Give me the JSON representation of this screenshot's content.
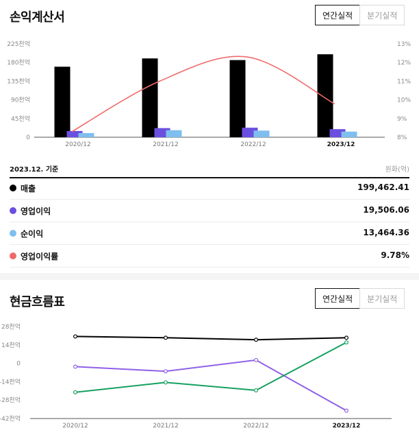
{
  "income": {
    "title": "손익계산서",
    "tabs": [
      {
        "label": "연간실적",
        "active": true
      },
      {
        "label": "분기실적",
        "active": false
      }
    ],
    "basis": "2023.12. 기준",
    "unit": "원화(억)",
    "legend": [
      {
        "label": "매출",
        "value": "199,462.41",
        "color": "#000000"
      },
      {
        "label": "영업이익",
        "value": "19,506.06",
        "color": "#6b4fe0"
      },
      {
        "label": "순이익",
        "value": "13,464.36",
        "color": "#7fbfef"
      },
      {
        "label": "영업이익률",
        "value": "9.78%",
        "color": "#f06a6a"
      }
    ]
  },
  "cashflow": {
    "title": "현금흐름표",
    "tabs": [
      {
        "label": "연간실적",
        "active": true
      },
      {
        "label": "분기실적",
        "active": false
      }
    ]
  },
  "chart_data": [
    {
      "type": "bar",
      "categories": [
        "2020/12",
        "2021/12",
        "2022/12",
        "2023/12"
      ],
      "highlight_category": "2023/12",
      "series": [
        {
          "name": "매출",
          "values": [
            170000,
            190000,
            186000,
            200000
          ],
          "color": "#000000"
        },
        {
          "name": "영업이익",
          "values": [
            15000,
            22000,
            23000,
            19500
          ],
          "color": "#6b4fe0"
        },
        {
          "name": "순이익",
          "values": [
            10000,
            17000,
            16000,
            13500
          ],
          "color": "#7fbfef"
        }
      ],
      "line_series": {
        "name": "영업이익률",
        "values": [
          8.3,
          11.0,
          12.3,
          9.78
        ],
        "color": "#f06a6a",
        "axis": "right"
      },
      "ylim": [
        0,
        225000
      ],
      "yticks": [
        0,
        45000,
        90000,
        135000,
        180000,
        225000
      ],
      "ytick_labels": [
        "0",
        "45천억",
        "90천억",
        "135천억",
        "180천억",
        "225천억"
      ],
      "y2lim": [
        8,
        13
      ],
      "y2ticks": [
        8,
        9,
        10,
        11,
        12,
        13
      ],
      "y2tick_labels": [
        "8%",
        "9%",
        "10%",
        "11%",
        "12%",
        "13%"
      ],
      "grid": false
    },
    {
      "type": "line",
      "categories": [
        "2020/12",
        "2021/12",
        "2022/12",
        "2023/12"
      ],
      "highlight_category": "2023/12",
      "series": [
        {
          "values": [
            20500,
            19500,
            18000,
            19500
          ],
          "color": "#000000"
        },
        {
          "values": [
            -2500,
            -6000,
            2500,
            -36000
          ],
          "color": "#8f5fe6"
        },
        {
          "values": [
            -22000,
            -14500,
            -20500,
            16000
          ],
          "color": "#14a060"
        }
      ],
      "ylim": [
        -42000,
        28000
      ],
      "yticks": [
        -42000,
        -28000,
        -14000,
        0,
        14000,
        28000
      ],
      "ytick_labels": [
        "-42천억",
        "-28천억",
        "-14천억",
        "0",
        "14천억",
        "28천억"
      ],
      "grid": false
    }
  ]
}
